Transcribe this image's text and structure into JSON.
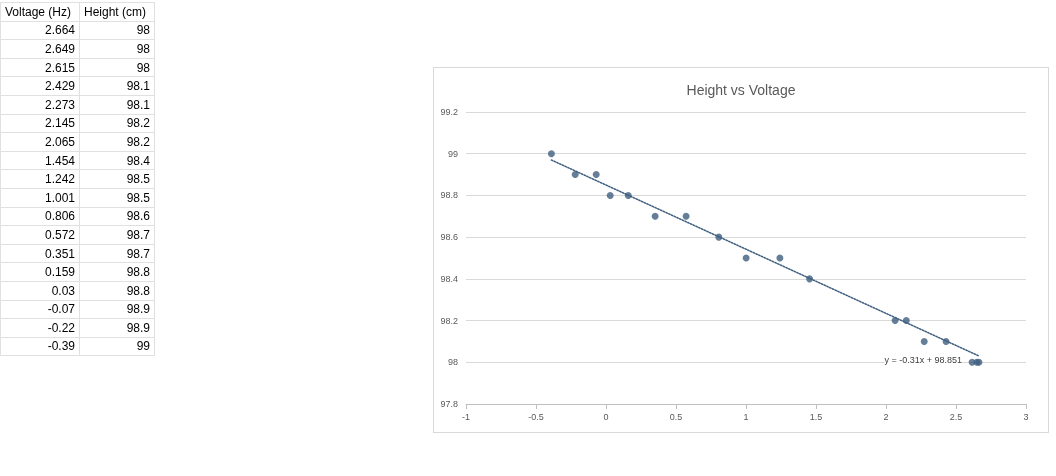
{
  "chart_data": [
    {
      "type": "other",
      "annotations": [
        "Voltage (Hz)",
        "Height (cm)",
        "2.664",
        "98",
        "2.649",
        "98",
        "2.615",
        "98",
        "2.429",
        "98.1",
        "2.273",
        "98.1",
        "2.145",
        "98.2",
        "2.065",
        "98.2",
        "1.454",
        "98.4",
        "1.242",
        "98.5",
        "1.001",
        "98.5",
        "0.806",
        "98.6",
        "0.572",
        "98.7",
        "0.351",
        "98.7",
        "0.159",
        "98.8",
        "0.03",
        "98.8",
        "-0.07",
        "98.9",
        "-0.22",
        "98.9",
        "-0.39",
        "99"
      ]
    },
    {
      "type": "scatter",
      "title": "Height vs Voltage",
      "marker": "circle",
      "series": [
        {
          "color": "#3f5f80",
          "x": [
            2.664,
            2.649,
            2.615,
            2.429,
            2.273,
            2.145,
            2.065,
            1.454,
            1.242,
            1.001,
            0.806,
            0.572,
            0.351,
            0.159,
            0.03,
            -0.07,
            -0.22,
            -0.39
          ],
          "values": [
            98,
            98,
            98,
            98.1,
            98.1,
            98.2,
            98.2,
            98.4,
            98.5,
            98.5,
            98.6,
            98.7,
            98.7,
            98.8,
            98.8,
            98.9,
            98.9,
            99
          ]
        },
        {
          "type": "line",
          "color": "#3f5f80",
          "marker": "none",
          "line_style": "dotted",
          "x": [
            -0.39,
            2.664
          ],
          "values": [
            98.97,
            98.03
          ]
        }
      ],
      "xlim": [
        -1,
        3
      ],
      "xticks": [
        -1,
        -0.5,
        0,
        0.5,
        1,
        1.5,
        2,
        2.5,
        3
      ],
      "ylim": [
        97.8,
        99.2
      ],
      "yticks": [
        97.8,
        98,
        98.2,
        98.4,
        98.6,
        98.8,
        99,
        99.2
      ],
      "grid": "y",
      "annotations": [
        "y = -0.31x + 98.851"
      ]
    }
  ]
}
